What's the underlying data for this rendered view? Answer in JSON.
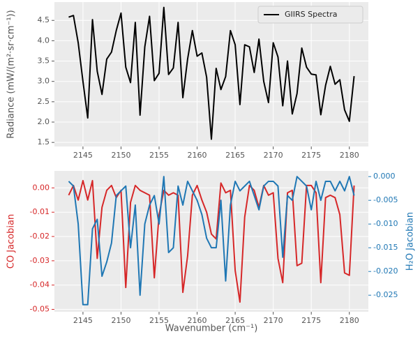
{
  "chart_data": [
    {
      "type": "line",
      "ylabel": "Radiance (mW/(m²·sr·cm⁻¹))",
      "x": [
        2143.125,
        2143.75,
        2144.375,
        2145,
        2145.625,
        2146.25,
        2146.875,
        2147.5,
        2148.125,
        2148.75,
        2149.375,
        2150,
        2150.625,
        2151.25,
        2151.875,
        2152.5,
        2153.125,
        2153.75,
        2154.375,
        2155,
        2155.625,
        2156.25,
        2156.875,
        2157.5,
        2158.125,
        2158.75,
        2159.375,
        2160,
        2160.625,
        2161.25,
        2161.875,
        2162.5,
        2163.125,
        2163.75,
        2164.375,
        2165,
        2165.625,
        2166.25,
        2166.875,
        2167.5,
        2168.125,
        2168.75,
        2169.375,
        2170,
        2170.625,
        2171.25,
        2171.875,
        2172.5,
        2173.125,
        2173.75,
        2174.375,
        2175,
        2175.625,
        2176.25,
        2176.875,
        2177.5,
        2178.125,
        2178.75,
        2179.375,
        2180,
        2180.625
      ],
      "series": [
        {
          "name": "GIIRS Spectra",
          "color": "#000000",
          "values": [
            4.58,
            4.62,
            3.95,
            3.0,
            2.1,
            4.52,
            3.25,
            2.68,
            3.55,
            3.72,
            4.25,
            4.68,
            3.35,
            2.97,
            4.45,
            2.17,
            3.85,
            4.6,
            3.02,
            3.2,
            4.82,
            3.17,
            3.33,
            4.45,
            2.6,
            3.55,
            4.25,
            3.62,
            3.7,
            3.1,
            1.58,
            3.32,
            2.8,
            3.12,
            4.25,
            3.9,
            2.43,
            3.9,
            3.85,
            3.22,
            4.04,
            3.0,
            2.48,
            3.95,
            3.6,
            2.4,
            3.5,
            2.2,
            2.7,
            3.82,
            3.35,
            3.18,
            3.16,
            2.18,
            2.9,
            3.37,
            2.93,
            3.04,
            2.3,
            2.02,
            3.13
          ]
        }
      ],
      "xlim": [
        2141.25,
        2182.5
      ],
      "xticks": [
        2145,
        2150,
        2155,
        2160,
        2165,
        2170,
        2175,
        2180
      ],
      "ylim": [
        1.4,
        4.95
      ],
      "yticks": [
        1.5,
        {
          "value": 2,
          "label": "2.0"
        },
        2.5,
        {
          "value": 3,
          "label": "3.0"
        },
        3.5,
        {
          "value": 4,
          "label": "4.0"
        },
        4.5
      ],
      "grid": true,
      "legend": "upper right"
    },
    {
      "type": "line",
      "xlabel": "Wavenumber (cm⁻¹)",
      "ylabel": "CO Jacobian",
      "y2label": "H₂O Jacobian",
      "x": [
        2143.125,
        2143.75,
        2144.375,
        2145,
        2145.625,
        2146.25,
        2146.875,
        2147.5,
        2148.125,
        2148.75,
        2149.375,
        2150,
        2150.625,
        2151.25,
        2151.875,
        2152.5,
        2153.125,
        2153.75,
        2154.375,
        2155,
        2155.625,
        2156.25,
        2156.875,
        2157.5,
        2158.125,
        2158.75,
        2159.375,
        2160,
        2160.625,
        2161.25,
        2161.875,
        2162.5,
        2163.125,
        2163.75,
        2164.375,
        2165,
        2165.625,
        2166.25,
        2166.875,
        2167.5,
        2168.125,
        2168.75,
        2169.375,
        2170,
        2170.625,
        2171.25,
        2171.875,
        2172.5,
        2173.125,
        2173.75,
        2174.375,
        2175,
        2175.625,
        2176.25,
        2176.875,
        2177.5,
        2178.125,
        2178.75,
        2179.375,
        2180,
        2180.625
      ],
      "series": [
        {
          "name": "CO Jacobian",
          "color": "#d62728",
          "axis": "y",
          "values": [
            -0.003,
            0.001,
            -0.005,
            0.003,
            -0.005,
            0.003,
            -0.029,
            -0.008,
            -0.001,
            0.001,
            -0.004,
            -0.001,
            -0.041,
            -0.006,
            0.001,
            -0.001,
            -0.002,
            -0.003,
            -0.037,
            -0.011,
            -0.001,
            -0.003,
            -0.002,
            -0.003,
            -0.043,
            -0.028,
            -0.003,
            0.001,
            -0.005,
            -0.01,
            -0.019,
            -0.021,
            0.002,
            -0.002,
            -0.001,
            -0.034,
            -0.047,
            -0.012,
            0.001,
            -0.001,
            -0.008,
            0.001,
            -0.003,
            -0.002,
            -0.029,
            -0.039,
            -0.002,
            -0.001,
            -0.032,
            -0.031,
            0.001,
            0.001,
            -0.002,
            -0.039,
            -0.004,
            -0.003,
            -0.004,
            -0.011,
            -0.035,
            -0.036,
            0.001
          ]
        },
        {
          "name": "H₂O Jacobian",
          "color": "#1f77b4",
          "axis": "y2",
          "values": [
            -0.001,
            -0.002,
            -0.01,
            -0.027,
            -0.027,
            -0.011,
            -0.009,
            -0.021,
            -0.018,
            -0.014,
            -0.004,
            -0.003,
            -0.002,
            -0.015,
            -0.006,
            -0.025,
            -0.01,
            -0.006,
            -0.004,
            -0.01,
            0.0,
            -0.016,
            -0.015,
            -0.002,
            -0.006,
            -0.001,
            -0.003,
            -0.005,
            -0.008,
            -0.013,
            -0.015,
            -0.015,
            -0.005,
            -0.022,
            -0.006,
            -0.001,
            -0.003,
            -0.002,
            -0.001,
            -0.004,
            -0.007,
            -0.002,
            -0.001,
            -0.001,
            -0.002,
            -0.017,
            -0.004,
            -0.005,
            0.0,
            -0.001,
            -0.002,
            -0.007,
            -0.001,
            -0.005,
            -0.001,
            -0.001,
            -0.003,
            -0.001,
            -0.003,
            0.0,
            -0.004
          ]
        }
      ],
      "xlim": [
        2141.25,
        2182.5
      ],
      "xticks": [
        2145,
        2150,
        2155,
        2160,
        2165,
        2170,
        2175,
        2180
      ],
      "ylim": [
        -0.051,
        0.007
      ],
      "yticks": [
        -0.05,
        -0.04,
        -0.03,
        -0.02,
        -0.01,
        {
          "value": 0,
          "label": "0.00"
        }
      ],
      "y2lim": [
        -0.0285,
        0.0012
      ],
      "y2ticks": [
        -0.025,
        {
          "value": -0.02,
          "label": "-0.020"
        },
        -0.015,
        {
          "value": -0.01,
          "label": "-0.010"
        },
        -0.005,
        {
          "value": 0,
          "label": "0.000"
        }
      ],
      "grid": true
    }
  ]
}
